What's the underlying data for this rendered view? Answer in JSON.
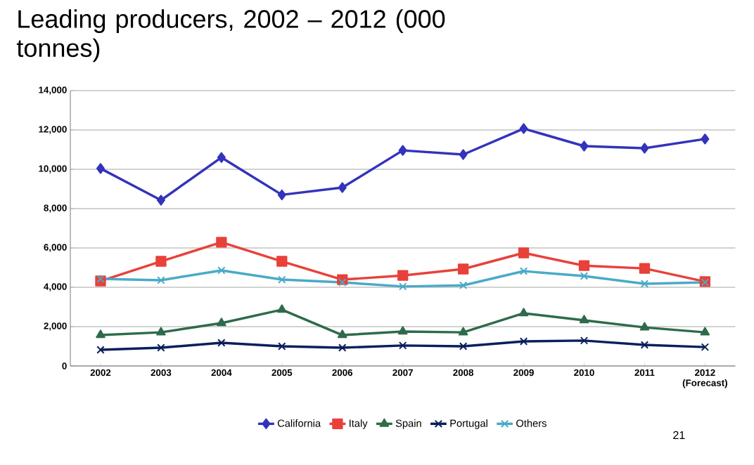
{
  "chart_data": {
    "type": "line",
    "title": "Leading producers, 2002 – 2012 (000 tonnes)",
    "categories": [
      "2002",
      "2003",
      "2004",
      "2005",
      "2006",
      "2007",
      "2008",
      "2009",
      "2010",
      "2011",
      "2012 (Forecast)"
    ],
    "series": [
      {
        "name": "California",
        "color": "#3333bb",
        "marker": "diamond",
        "values": [
          10040,
          8430,
          10600,
          8700,
          9070,
          10960,
          10750,
          12070,
          11180,
          11070,
          11540
        ]
      },
      {
        "name": "Italy",
        "color": "#e8413a",
        "marker": "square",
        "values": [
          4320,
          5320,
          6290,
          5320,
          4390,
          4600,
          4930,
          5750,
          5100,
          4960,
          4290
        ]
      },
      {
        "name": "Spain",
        "color": "#2e6b4a",
        "marker": "triangle",
        "values": [
          1570,
          1710,
          2180,
          2860,
          1570,
          1750,
          1710,
          2680,
          2320,
          1960,
          1710
        ]
      },
      {
        "name": "Portugal",
        "color": "#0a1f5c",
        "marker": "cross",
        "values": [
          820,
          930,
          1180,
          1000,
          930,
          1040,
          1000,
          1250,
          1290,
          1070,
          960
        ]
      },
      {
        "name": "Others",
        "color": "#4aaac8",
        "marker": "cross",
        "values": [
          4430,
          4360,
          4860,
          4390,
          4250,
          4040,
          4100,
          4820,
          4570,
          4180,
          4250
        ]
      }
    ],
    "ylim": [
      0,
      14000
    ],
    "yticks": [
      {
        "value": 0,
        "label": "0"
      },
      {
        "value": 2000,
        "label": "2,000"
      },
      {
        "value": 4000,
        "label": "4,000"
      },
      {
        "value": 6000,
        "label": "6,000"
      },
      {
        "value": 8000,
        "label": "8,000"
      },
      {
        "value": 10000,
        "label": "10,000"
      },
      {
        "value": 12000,
        "label": "12,000"
      },
      {
        "value": 14000,
        "label": "14,000"
      }
    ],
    "grid": "y",
    "legend": "bottom",
    "line_style": "solid",
    "annotations": [
      "21"
    ]
  }
}
